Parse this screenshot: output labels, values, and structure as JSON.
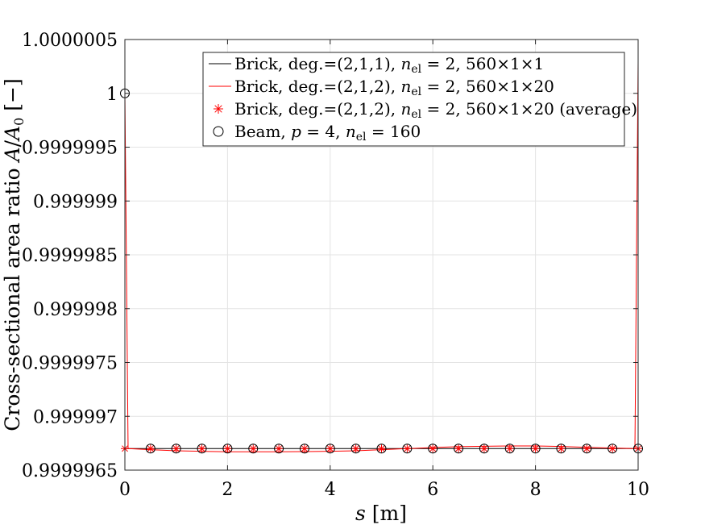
{
  "chart_data": {
    "type": "line",
    "title": "",
    "xlabel": "s [m]",
    "ylabel": "Cross-sectional area ratio A/A0 [−]",
    "xlim": [
      0,
      10
    ],
    "ylim": [
      0.9999965,
      1.0000005
    ],
    "grid": true,
    "legend_placement": "top-right",
    "x_ticks": [
      "0",
      "2",
      "4",
      "6",
      "8",
      "10"
    ],
    "y_ticks": [
      "0.9999965",
      "0.999997",
      "0.9999975",
      "0.999998",
      "0.9999985",
      "0.999999",
      "0.9999995",
      "1",
      "1.0000005"
    ],
    "series": [
      {
        "name": "Brick, deg.=(2,1,1), nel = 2,560×1×1",
        "style": "line",
        "color": "#000000",
        "x": [
          0,
          0.0625,
          10
        ],
        "y": [
          0.9999967,
          0.9999967,
          0.9999967
        ]
      },
      {
        "name": "Brick, deg.=(2,1,2), nel = 2,560×1×20",
        "style": "line",
        "color": "#ff0000",
        "x": [
          0,
          0.0625,
          0.5,
          1,
          1.5,
          2,
          2.5,
          3,
          3.5,
          4,
          4.5,
          5,
          5.5,
          6,
          6.5,
          7,
          7.5,
          8,
          8.5,
          9,
          9.5,
          9.9375,
          10
        ],
        "y": [
          1.0,
          0.9999967,
          0.99999669,
          0.99999668,
          0.999996675,
          0.99999667,
          0.99999667,
          0.99999667,
          0.999996672,
          0.999996675,
          0.99999668,
          0.99999669,
          0.9999967,
          0.99999671,
          0.999996718,
          0.999996722,
          0.999996725,
          0.999996725,
          0.99999672,
          0.999996712,
          0.999996705,
          0.9999967,
          1.0000003
        ]
      },
      {
        "name": "Brick, deg.=(2,1,2), nel = 2,560×1×20 (average)",
        "style": "marker-asterisk",
        "color": "#ff0000",
        "x": [
          0,
          0.5,
          1,
          1.5,
          2,
          2.5,
          3,
          3.5,
          4,
          4.5,
          5,
          5.5,
          6,
          6.5,
          7,
          7.5,
          8,
          8.5,
          9,
          9.5,
          10
        ],
        "y": [
          0.9999967,
          0.9999967,
          0.9999967,
          0.9999967,
          0.9999967,
          0.9999967,
          0.9999967,
          0.9999967,
          0.9999967,
          0.9999967,
          0.9999967,
          0.9999967,
          0.9999967,
          0.9999967,
          0.9999967,
          0.9999967,
          0.9999967,
          0.9999967,
          0.9999967,
          0.9999967,
          0.9999967
        ]
      },
      {
        "name": "Beam, p = 4, nel = 160",
        "style": "marker-circle",
        "color": "#000000",
        "x": [
          0,
          0.5,
          1,
          1.5,
          2,
          2.5,
          3,
          3.5,
          4,
          4.5,
          5,
          5.5,
          6,
          6.5,
          7,
          7.5,
          8,
          8.5,
          9,
          9.5,
          10
        ],
        "y": [
          1.0,
          0.9999967,
          0.9999967,
          0.9999967,
          0.9999967,
          0.9999967,
          0.9999967,
          0.9999967,
          0.9999967,
          0.9999967,
          0.9999967,
          0.9999967,
          0.9999967,
          0.9999967,
          0.9999967,
          0.9999967,
          0.9999967,
          0.9999967,
          0.9999967,
          0.9999967,
          0.9999967
        ]
      }
    ]
  }
}
